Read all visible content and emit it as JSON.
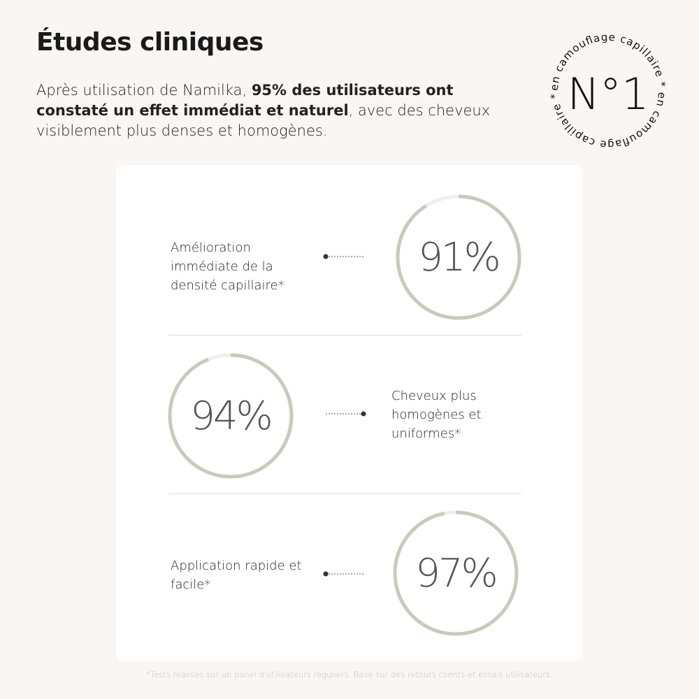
{
  "header": {
    "title": "Études cliniques",
    "intro_before": "Après utilisation de Namilka, ",
    "intro_bold": "95% des utilisateurs ont constaté un effet immédiat et naturel",
    "intro_after": ", avec des cheveux visiblement plus denses et homogènes."
  },
  "badge": {
    "main": "N°1",
    "circular_text": "en camouflage capillaire * en camouflage capillaire * "
  },
  "stats": [
    {
      "label": "Amélioration immédiate de la densité capillaire*",
      "value": "91%",
      "percent": 91
    },
    {
      "label": "Cheveux plus homogènes et uniformes*",
      "value": "94%",
      "percent": 94
    },
    {
      "label": "Application rapide et facile*",
      "value": "97%",
      "percent": 97
    }
  ],
  "colors": {
    "ring": "#c9cabd",
    "ring_remainder": "#eeeeea",
    "background": "#f9f6f3"
  },
  "footnote": "*Tests réalisés sur un panel d'utilisateurs réguliers. Basé sur des retours clients et essais utilisateurs."
}
